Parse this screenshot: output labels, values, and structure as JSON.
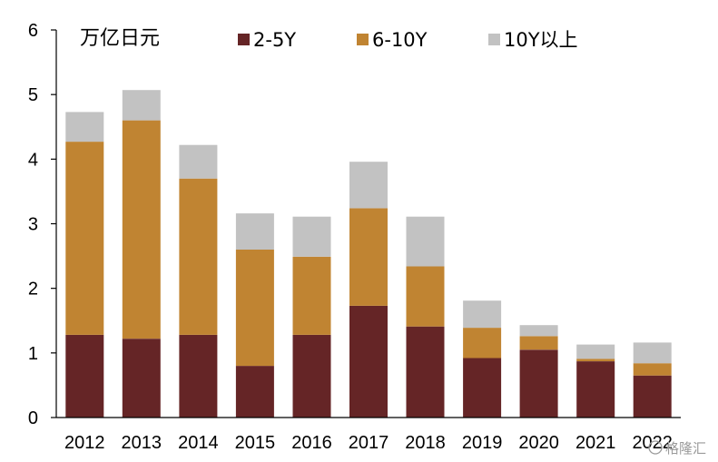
{
  "chart_data": {
    "type": "bar",
    "stacked": true,
    "unit_label": "万亿日元",
    "categories": [
      "2012",
      "2013",
      "2014",
      "2015",
      "2016",
      "2017",
      "2018",
      "2019",
      "2020",
      "2021",
      "2022"
    ],
    "series": [
      {
        "name": "2-5Y",
        "color": "#652526",
        "values": [
          1.28,
          1.22,
          1.28,
          0.8,
          1.28,
          1.73,
          1.41,
          0.92,
          1.05,
          0.87,
          0.65
        ]
      },
      {
        "name": "6-10Y",
        "color": "#C08432",
        "values": [
          2.99,
          3.38,
          2.42,
          1.8,
          1.21,
          1.51,
          0.93,
          0.47,
          0.21,
          0.04,
          0.19
        ]
      },
      {
        "name": "10Y以上",
        "color": "#C2C2C2",
        "values": [
          0.46,
          0.47,
          0.52,
          0.56,
          0.62,
          0.72,
          0.77,
          0.42,
          0.17,
          0.22,
          0.32
        ]
      }
    ],
    "ylim": [
      0,
      6
    ],
    "yticks": [
      "0",
      "1",
      "2",
      "3",
      "4",
      "5",
      "6"
    ],
    "legend_position": "top",
    "grid": false
  },
  "watermark": {
    "text": "格隆汇"
  }
}
